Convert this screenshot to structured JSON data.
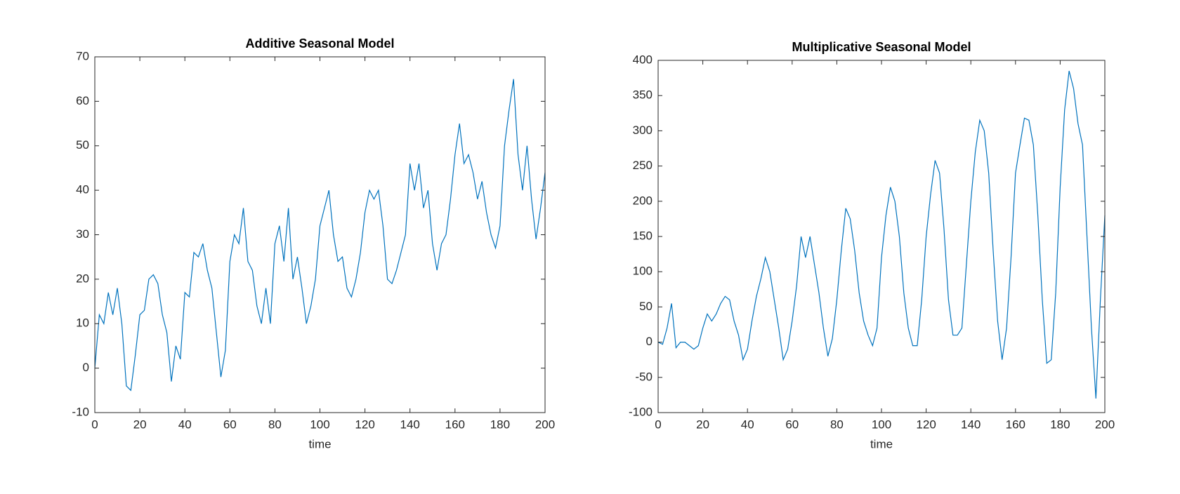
{
  "chart_data": [
    {
      "type": "line",
      "title": "Additive Seasonal Model",
      "x_label": "time",
      "color": "#0072bd",
      "x": [
        0,
        2,
        4,
        6,
        8,
        10,
        12,
        14,
        16,
        18,
        20,
        22,
        24,
        26,
        28,
        30,
        32,
        34,
        36,
        38,
        40,
        42,
        44,
        46,
        48,
        50,
        52,
        54,
        56,
        58,
        60,
        62,
        64,
        66,
        68,
        70,
        72,
        74,
        76,
        78,
        80,
        82,
        84,
        86,
        88,
        90,
        92,
        94,
        96,
        98,
        100,
        102,
        104,
        106,
        108,
        110,
        112,
        114,
        116,
        118,
        120,
        122,
        124,
        126,
        128,
        130,
        132,
        134,
        136,
        138,
        140,
        142,
        144,
        146,
        148,
        150,
        152,
        154,
        156,
        158,
        160,
        162,
        164,
        166,
        168,
        170,
        172,
        174,
        176,
        178,
        180,
        182,
        184,
        186,
        188,
        190,
        192,
        194,
        196,
        198,
        200
      ],
      "values": [
        0,
        12,
        10,
        17,
        12,
        18,
        10,
        -4,
        -5,
        3,
        12,
        13,
        20,
        21,
        19,
        12,
        8,
        -3,
        5,
        2,
        17,
        16,
        26,
        25,
        28,
        22,
        18,
        8,
        -2,
        4,
        24,
        30,
        28,
        36,
        24,
        22,
        14,
        10,
        18,
        10,
        28,
        32,
        24,
        36,
        20,
        25,
        18,
        10,
        14,
        20,
        32,
        36,
        40,
        30,
        24,
        25,
        18,
        16,
        20,
        26,
        35,
        40,
        38,
        40,
        32,
        20,
        19,
        22,
        26,
        30,
        46,
        40,
        46,
        36,
        40,
        28,
        22,
        28,
        30,
        38,
        48,
        55,
        46,
        48,
        44,
        38,
        42,
        35,
        30,
        27,
        32,
        50,
        58,
        65,
        48,
        40,
        50,
        38,
        29,
        36,
        44
      ],
      "xlim": [
        0,
        200
      ],
      "xticks": [
        0,
        20,
        40,
        60,
        80,
        100,
        120,
        140,
        160,
        180,
        200
      ],
      "ylim": [
        -10,
        70
      ],
      "yticks": [
        -10,
        0,
        10,
        20,
        30,
        40,
        50,
        60,
        70
      ]
    },
    {
      "type": "line",
      "title": "Multiplicative Seasonal Model",
      "x_label": "time",
      "color": "#0072bd",
      "x": [
        0,
        2,
        4,
        6,
        8,
        10,
        12,
        14,
        16,
        18,
        20,
        22,
        24,
        26,
        28,
        30,
        32,
        34,
        36,
        38,
        40,
        42,
        44,
        46,
        48,
        50,
        52,
        54,
        56,
        58,
        60,
        62,
        64,
        66,
        68,
        70,
        72,
        74,
        76,
        78,
        80,
        82,
        84,
        86,
        88,
        90,
        92,
        94,
        96,
        98,
        100,
        102,
        104,
        106,
        108,
        110,
        112,
        114,
        116,
        118,
        120,
        122,
        124,
        126,
        128,
        130,
        132,
        134,
        136,
        138,
        140,
        142,
        144,
        146,
        148,
        150,
        152,
        154,
        156,
        158,
        160,
        162,
        164,
        166,
        168,
        170,
        172,
        174,
        176,
        178,
        180,
        182,
        184,
        186,
        188,
        190,
        192,
        194,
        196,
        198,
        200
      ],
      "values": [
        0,
        -3,
        20,
        55,
        -8,
        0,
        0,
        -5,
        -10,
        -5,
        20,
        40,
        30,
        40,
        55,
        65,
        60,
        30,
        10,
        -25,
        -10,
        30,
        65,
        90,
        120,
        100,
        60,
        20,
        -25,
        -10,
        30,
        80,
        150,
        120,
        150,
        110,
        70,
        20,
        -20,
        5,
        60,
        130,
        190,
        175,
        130,
        70,
        30,
        10,
        -5,
        20,
        120,
        180,
        220,
        200,
        150,
        70,
        20,
        -5,
        -5,
        60,
        150,
        210,
        258,
        240,
        160,
        60,
        10,
        10,
        20,
        110,
        200,
        270,
        315,
        300,
        240,
        130,
        30,
        -25,
        20,
        120,
        240,
        280,
        318,
        315,
        280,
        180,
        60,
        -30,
        -25,
        70,
        220,
        330,
        385,
        360,
        310,
        280,
        150,
        20,
        -80,
        60,
        180
      ],
      "xlim": [
        0,
        200
      ],
      "xticks": [
        0,
        20,
        40,
        60,
        80,
        100,
        120,
        140,
        160,
        180,
        200
      ],
      "ylim": [
        -100,
        400
      ],
      "yticks": [
        -100,
        -50,
        0,
        50,
        100,
        150,
        200,
        250,
        300,
        350,
        400
      ]
    }
  ]
}
